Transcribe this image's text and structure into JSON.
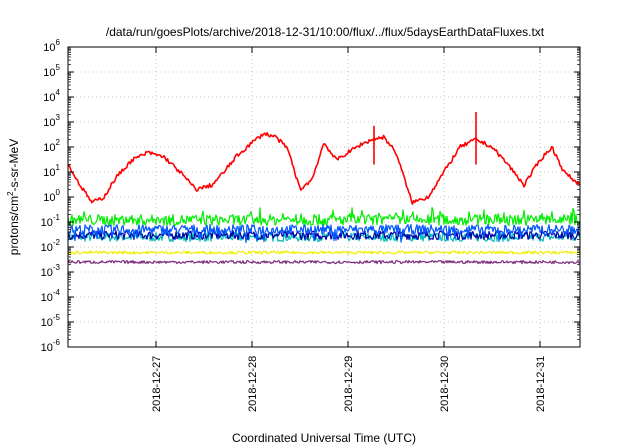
{
  "chart_data": {
    "type": "line",
    "title": "/data/run/goesPlots/archive/2018-12-31/10:00/flux/../flux/5daysEarthDataFluxes.txt",
    "xlabel": "Coordinated Universal Time (UTC)",
    "ylabel_parts": {
      "base": "protons/cm",
      "exp": "2",
      "rest": "-s-sr-MeV"
    },
    "yscale": "log",
    "ylim": [
      1e-06,
      1000000.0
    ],
    "y_ticks": [
      {
        "base": "10",
        "exp": "6"
      },
      {
        "base": "10",
        "exp": "5"
      },
      {
        "base": "10",
        "exp": "4"
      },
      {
        "base": "10",
        "exp": "3"
      },
      {
        "base": "10",
        "exp": "2"
      },
      {
        "base": "10",
        "exp": "1"
      },
      {
        "base": "10",
        "exp": "0"
      },
      {
        "base": "10",
        "exp": "-1"
      },
      {
        "base": "10",
        "exp": "-2"
      },
      {
        "base": "10",
        "exp": "-3"
      },
      {
        "base": "10",
        "exp": "-4"
      },
      {
        "base": "10",
        "exp": "-5"
      },
      {
        "base": "10",
        "exp": "-6"
      }
    ],
    "x_ticks": [
      "2018-12-27",
      "2018-12-28",
      "2018-12-29",
      "2018-12-30",
      "2018-12-31"
    ],
    "x_range_days": [
      "2018-12-26T02:00",
      "2018-12-31T10:00"
    ],
    "grid": true,
    "series": [
      {
        "color": "#ff0000",
        "x": [
          "2018-12-26T02:00",
          "2018-12-26T05:00",
          "2018-12-26T08:00",
          "2018-12-26T11:00",
          "2018-12-26T14:00",
          "2018-12-26T18:00",
          "2018-12-26T22:00",
          "2018-12-27T02:00",
          "2018-12-27T06:00",
          "2018-12-27T10:00",
          "2018-12-27T14:00",
          "2018-12-27T17:00",
          "2018-12-27T20:00",
          "2018-12-28T00:00",
          "2018-12-28T03:00",
          "2018-12-28T06:00",
          "2018-12-28T09:00",
          "2018-12-28T12:00",
          "2018-12-28T15:00",
          "2018-12-28T18:00",
          "2018-12-28T21:00",
          "2018-12-29T00:00",
          "2018-12-29T03:00",
          "2018-12-29T06:00",
          "2018-12-29T09:00",
          "2018-12-29T12:00",
          "2018-12-29T16:00",
          "2018-12-29T20:00",
          "2018-12-30T00:00",
          "2018-12-30T04:00",
          "2018-12-30T08:00",
          "2018-12-30T12:00",
          "2018-12-30T16:00",
          "2018-12-30T20:00",
          "2018-12-31T00:00",
          "2018-12-31T03:00",
          "2018-12-31T06:00",
          "2018-12-31T10:00"
        ],
        "y": [
          20,
          3,
          0.6,
          1,
          6,
          30,
          60,
          40,
          10,
          2,
          3,
          10,
          40,
          150,
          350,
          250,
          80,
          2,
          5,
          150,
          30,
          60,
          120,
          200,
          250,
          60,
          0.6,
          1,
          10,
          100,
          200,
          100,
          20,
          3,
          30,
          100,
          10,
          3
        ]
      },
      {
        "color": "#00ee00",
        "x": [
          "2018-12-26T02:00",
          "2018-12-27T02:00",
          "2018-12-28T02:00",
          "2018-12-29T02:00",
          "2018-12-30T02:00",
          "2018-12-31T02:00",
          "2018-12-31T10:00"
        ],
        "y": [
          0.12,
          0.12,
          0.12,
          0.12,
          0.12,
          0.12,
          0.12
        ]
      },
      {
        "color": "#00bbbb",
        "x": [
          "2018-12-26T02:00",
          "2018-12-27T02:00",
          "2018-12-28T02:00",
          "2018-12-29T02:00",
          "2018-12-30T02:00",
          "2018-12-31T02:00",
          "2018-12-31T10:00"
        ],
        "y": [
          0.025,
          0.025,
          0.025,
          0.025,
          0.025,
          0.025,
          0.025
        ]
      },
      {
        "color": "#0055ff",
        "x": [
          "2018-12-26T02:00",
          "2018-12-27T02:00",
          "2018-12-28T02:00",
          "2018-12-29T02:00",
          "2018-12-30T02:00",
          "2018-12-31T02:00",
          "2018-12-31T10:00"
        ],
        "y": [
          0.05,
          0.05,
          0.05,
          0.05,
          0.05,
          0.05,
          0.05
        ]
      },
      {
        "color": "#0000aa",
        "x": [
          "2018-12-26T02:00",
          "2018-12-27T02:00",
          "2018-12-28T02:00",
          "2018-12-29T02:00",
          "2018-12-30T02:00",
          "2018-12-31T02:00",
          "2018-12-31T10:00"
        ],
        "y": [
          0.03,
          0.03,
          0.03,
          0.03,
          0.03,
          0.03,
          0.03
        ]
      },
      {
        "color": "#eeee00",
        "x": [
          "2018-12-26T02:00",
          "2018-12-27T02:00",
          "2018-12-28T02:00",
          "2018-12-29T02:00",
          "2018-12-30T02:00",
          "2018-12-31T02:00",
          "2018-12-31T10:00"
        ],
        "y": [
          0.006,
          0.006,
          0.006,
          0.006,
          0.006,
          0.006,
          0.006
        ]
      },
      {
        "color": "#7b2a7b",
        "x": [
          "2018-12-26T02:00",
          "2018-12-27T02:00",
          "2018-12-28T02:00",
          "2018-12-29T02:00",
          "2018-12-30T02:00",
          "2018-12-31T02:00",
          "2018-12-31T10:00"
        ],
        "y": [
          0.0025,
          0.0025,
          0.0025,
          0.0025,
          0.0025,
          0.0025,
          0.0025
        ]
      }
    ]
  }
}
